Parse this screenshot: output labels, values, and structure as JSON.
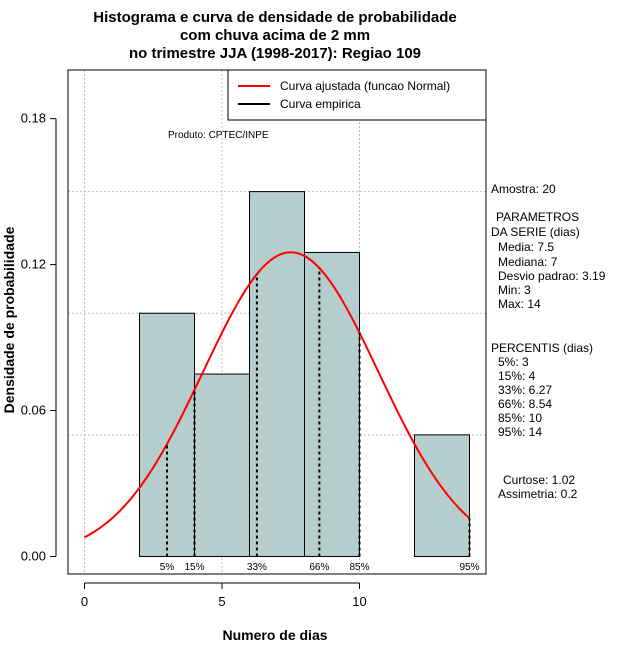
{
  "chart_data": {
    "type": "bar",
    "title_lines": [
      "Histograma e curva de densidade de probabilidade",
      "com chuva acima de 2 mm",
      "no trimestre JJA (1998-2017): Regiao 109"
    ],
    "xlabel": "Numero de dias",
    "ylabel": "Densidade de probabilidade",
    "xlim": [
      -0.6,
      14.6
    ],
    "ylim": [
      -0.0072,
      0.2
    ],
    "x_ticks": [
      0,
      5,
      10
    ],
    "y_ticks": [
      0.0,
      0.06,
      0.12,
      0.18
    ],
    "y_tick_labels": [
      "0.00",
      "0.06",
      "0.12",
      "0.18"
    ],
    "grid_x": [
      0,
      5,
      10
    ],
    "grid_y": [
      0.05,
      0.1,
      0.15
    ],
    "bins": [
      {
        "x0": 2,
        "x1": 4,
        "density": 0.1
      },
      {
        "x0": 4,
        "x1": 6,
        "density": 0.075
      },
      {
        "x0": 6,
        "x1": 8,
        "density": 0.15
      },
      {
        "x0": 8,
        "x1": 10,
        "density": 0.125
      },
      {
        "x0": 10,
        "x1": 12,
        "density": 0.0
      },
      {
        "x0": 12,
        "x1": 14,
        "density": 0.05
      }
    ],
    "normal_curve": {
      "mean": 7.5,
      "sd": 3.19,
      "x_from": 0,
      "x_to": 14
    },
    "percentile_lines": [
      {
        "label": "5%",
        "x": 3
      },
      {
        "label": "15%",
        "x": 4
      },
      {
        "label": "33%",
        "x": 6.27
      },
      {
        "label": "66%",
        "x": 8.54
      },
      {
        "label": "85%",
        "x": 10
      },
      {
        "label": "95%",
        "x": 14
      }
    ],
    "legend": [
      {
        "label": "Curva ajustada (funcao Normal)",
        "color": "#ff0000"
      },
      {
        "label": "Curva empirica",
        "color": "#000000"
      }
    ],
    "annotation": "Produto: CPTEC/INPE"
  },
  "stats_panel": {
    "amostra": "Amostra: 20",
    "param_header_1": "PARAMETROS",
    "param_header_2": "DA SERIE (dias)",
    "media": "Media: 7.5",
    "mediana": "Mediana: 7",
    "desvio": "Desvio padrao: 3.19",
    "min": "Min: 3",
    "max": "Max: 14",
    "perc_header": "PERCENTIS (dias)",
    "p5": "5%: 3",
    "p15": "15%: 4",
    "p33": "33%: 6.27",
    "p66": "66%: 8.54",
    "p85": "85%: 10",
    "p95": "95%: 14",
    "curtose": "Curtose: 1.02",
    "assimetria": "Assimetria: 0.2"
  },
  "colors": {
    "bar_fill": "#b5cdcc",
    "curve": "#ff0000",
    "grid": "#bdbdbd"
  }
}
